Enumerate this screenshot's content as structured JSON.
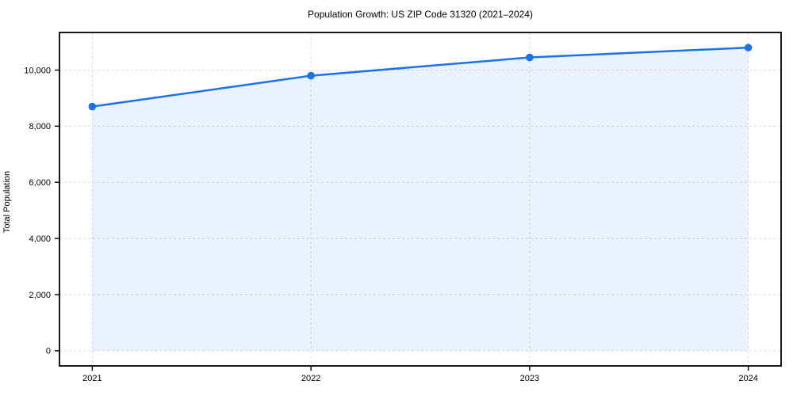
{
  "page": {
    "title": "Population Growth: US ZIP Code 31320 (2021–2024)"
  },
  "chart_data": {
    "type": "line",
    "title": "Population Growth: US ZIP Code 31320 (2021–2024)",
    "xlabel": "",
    "ylabel": "Total Population",
    "x": [
      2021,
      2022,
      2023,
      2024
    ],
    "x_tick_labels": [
      "2021",
      "2022",
      "2023",
      "2024"
    ],
    "series": [
      {
        "name": "Total Population",
        "values": [
          8700,
          9800,
          10450,
          10800
        ]
      }
    ],
    "y_ticks": [
      0,
      2000,
      4000,
      6000,
      8000,
      10000
    ],
    "y_tick_labels": [
      "0",
      "2,000",
      "4,000",
      "6,000",
      "8,000",
      "10,000"
    ],
    "xlim": [
      2020.85,
      2024.15
    ],
    "ylim": [
      -540,
      11340
    ],
    "grid": true,
    "grid_style": "dashed",
    "area_fill": true,
    "legend_position": "none",
    "marker": "circle",
    "colors": {
      "line": "#1a73e8",
      "marker": "#1a73e8",
      "area_fill": "#1a73e8",
      "area_fill_opacity": 0.09,
      "grid": "#d9d9d9",
      "spine": "#000000",
      "text": "#000000",
      "background": "#ffffff"
    }
  }
}
